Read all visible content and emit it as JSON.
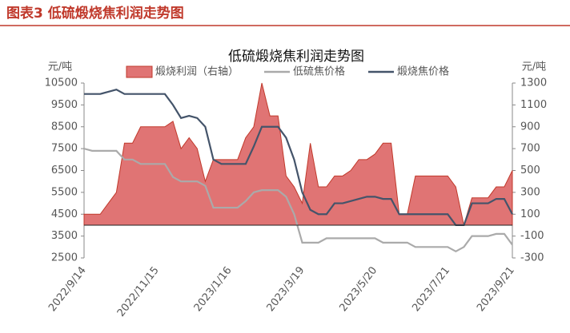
{
  "header": {
    "title": "图表3 低硫煅烧焦利润走势图"
  },
  "chart_data": {
    "type": "combo",
    "title": "低硫煅烧焦利润走势图",
    "y_label": "元/吨",
    "y2_label": "元/吨",
    "categories": [
      "2022/9/14",
      null,
      null,
      null,
      null,
      null,
      null,
      null,
      null,
      "2022/11/15",
      null,
      null,
      null,
      null,
      null,
      null,
      null,
      null,
      "2023/1/16",
      null,
      null,
      null,
      null,
      null,
      null,
      null,
      null,
      "2023/3/19",
      null,
      null,
      null,
      null,
      null,
      null,
      null,
      null,
      "2023/5/20",
      null,
      null,
      null,
      null,
      null,
      null,
      null,
      null,
      "2023/7/21",
      null,
      null,
      null,
      null,
      null,
      null,
      null,
      "2023/9/21"
    ],
    "ylim": [
      2500,
      10500
    ],
    "yticks": [
      2500,
      3500,
      4500,
      5500,
      6500,
      7500,
      8500,
      9500,
      10500
    ],
    "y2lim": [
      -300,
      1300
    ],
    "y2ticks": [
      -300,
      -100,
      100,
      300,
      500,
      700,
      900,
      1100,
      1300
    ],
    "series": [
      {
        "name": "煅烧利润（右轴）",
        "type": "area",
        "axis": "y2",
        "color": "#e07474",
        "edge": "#c0392b",
        "values": [
          100,
          100,
          100,
          200,
          300,
          750,
          750,
          900,
          900,
          900,
          900,
          950,
          700,
          800,
          700,
          400,
          600,
          600,
          600,
          600,
          800,
          900,
          1300,
          1000,
          1000,
          450,
          350,
          200,
          750,
          350,
          350,
          450,
          450,
          500,
          600,
          600,
          650,
          750,
          750,
          100,
          100,
          450,
          450,
          450,
          450,
          450,
          350,
          0,
          250,
          250,
          250,
          350,
          350,
          500
        ]
      },
      {
        "name": "低硫焦价格",
        "type": "line",
        "color": "#aaaaaa",
        "values": [
          7500,
          7400,
          7400,
          7400,
          7400,
          7000,
          7000,
          6800,
          6800,
          6800,
          6800,
          6200,
          6000,
          6000,
          6000,
          5800,
          4800,
          4800,
          4800,
          4800,
          5100,
          5500,
          5600,
          5600,
          5600,
          5300,
          4500,
          3200,
          3200,
          3200,
          3400,
          3400,
          3400,
          3400,
          3400,
          3400,
          3400,
          3200,
          3200,
          3200,
          3200,
          3000,
          3000,
          3000,
          3000,
          3000,
          2800,
          3000,
          3500,
          3500,
          3500,
          3600,
          3600,
          3100
        ]
      },
      {
        "name": "煅烧焦价格",
        "type": "line",
        "color": "#44546a",
        "values": [
          10000,
          10000,
          10000,
          10100,
          10200,
          10000,
          10000,
          10000,
          10000,
          10000,
          10000,
          9500,
          8900,
          9000,
          8900,
          8500,
          7000,
          6800,
          6800,
          6800,
          6800,
          7600,
          8500,
          8500,
          8500,
          8000,
          7000,
          5500,
          4700,
          4500,
          4500,
          5000,
          5000,
          5100,
          5200,
          5300,
          5300,
          5200,
          5200,
          4500,
          4500,
          4500,
          4500,
          4500,
          4500,
          4500,
          4000,
          4000,
          5000,
          5000,
          5000,
          5200,
          5200,
          4500
        ]
      }
    ]
  }
}
